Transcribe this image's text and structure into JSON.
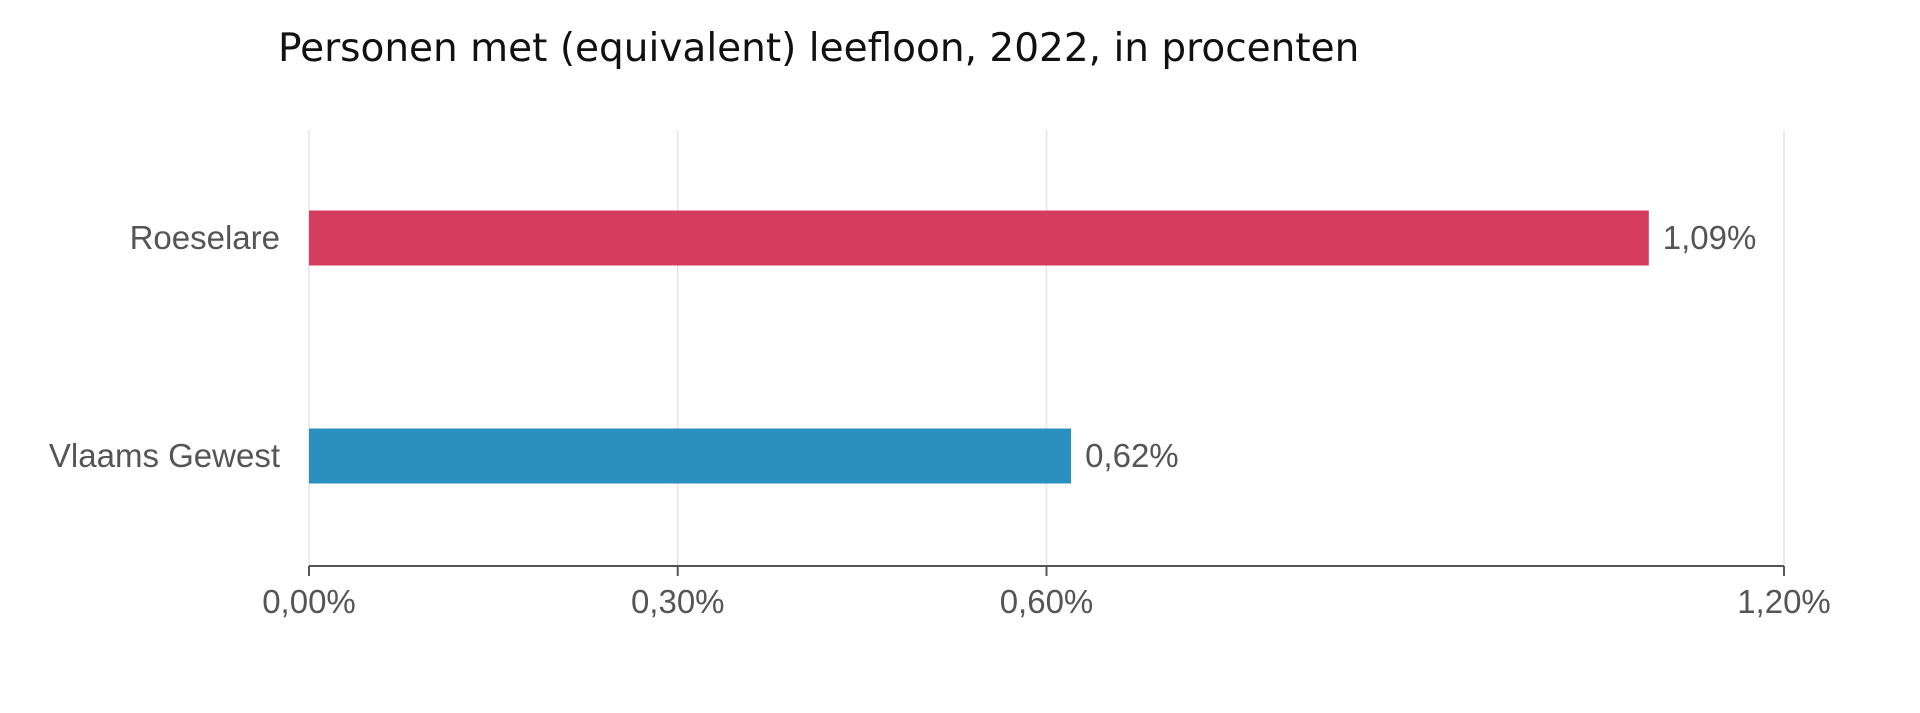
{
  "chart_data": {
    "type": "bar",
    "orientation": "horizontal",
    "title": "Personen met (equivalent) leefloon, 2022, in procenten",
    "categories": [
      "Roeselare",
      "Vlaams Gewest"
    ],
    "values": [
      1.09,
      0.62
    ],
    "value_labels": [
      "1,09%",
      "0,62%"
    ],
    "colors": [
      "#D43D5E",
      "#2B90BD"
    ],
    "xlim": [
      0,
      1.2
    ],
    "xticks": [
      0,
      0.3,
      0.6,
      1.2
    ],
    "xtick_labels": [
      "0,00%",
      "0,30%",
      "0,60%",
      "1,20%"
    ],
    "gridlines": [
      0,
      0.3,
      0.6,
      1.2
    ],
    "xlabel": "",
    "ylabel": "",
    "grid": true,
    "legend": false
  }
}
